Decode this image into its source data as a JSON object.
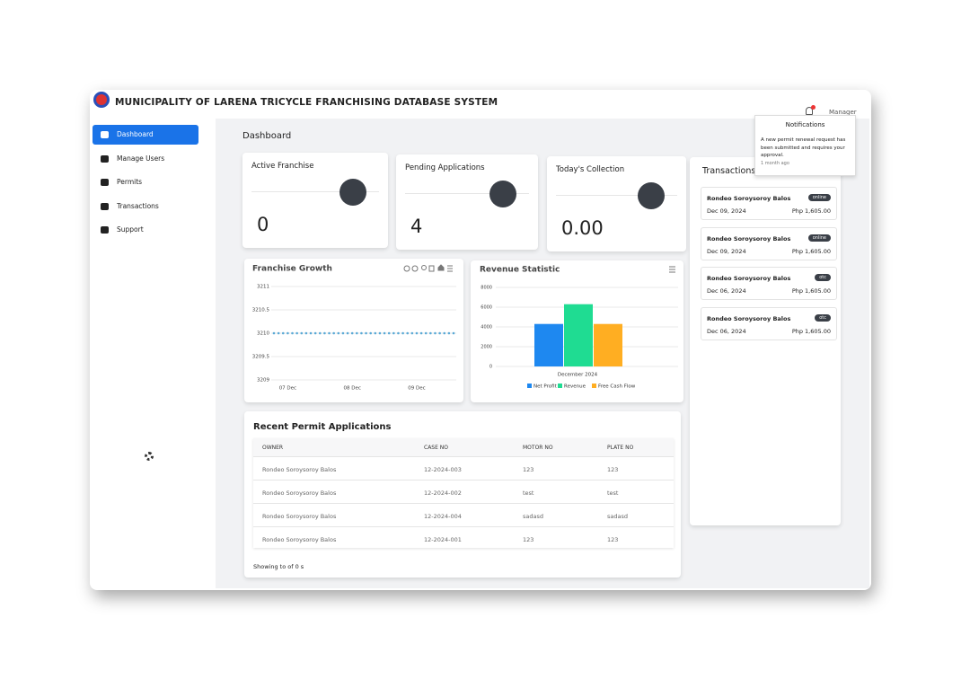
{
  "header": {
    "title": "MUNICIPALITY OF LARENA TRICYCLE FRANCHISING DATABASE SYSTEM",
    "user": "Manager"
  },
  "nav": [
    "Dashboard",
    "Manage Users",
    "Permits",
    "Transactions",
    "Support"
  ],
  "page_title": "Dashboard",
  "stats": [
    {
      "label": "Active Franchise",
      "value": "0"
    },
    {
      "label": "Pending Applications",
      "value": "4"
    },
    {
      "label": "Today's Collection",
      "value": "0.00"
    }
  ],
  "chart_data": [
    {
      "type": "line",
      "title": "Franchise Growth",
      "color": "#5aa9d6",
      "categories": [
        null,
        null,
        null,
        "07 Dec",
        null,
        null,
        null,
        null,
        null,
        null,
        null,
        null,
        null,
        null,
        null,
        null,
        null,
        "08 Dec",
        null,
        null,
        null,
        null,
        null,
        null,
        null,
        null,
        null,
        null,
        null,
        null,
        null,
        "09 Dec",
        null,
        null,
        null,
        null,
        null,
        null,
        null,
        null
      ],
      "values": [
        3210,
        3210,
        3210,
        3210,
        3210,
        3210,
        3210,
        3210,
        3210,
        3210,
        3210,
        3210,
        3210,
        3210,
        3210,
        3210,
        3210,
        3210,
        3210,
        3210,
        3210,
        3210,
        3210,
        3210,
        3210,
        3210,
        3210,
        3210,
        3210,
        3210,
        3210,
        3210,
        3210,
        3210,
        3210,
        3210,
        3210,
        3210,
        3210,
        3210
      ],
      "ylim": [
        3209,
        3211
      ],
      "yticks": [
        3209,
        3209.5,
        3210,
        3210.5,
        3211
      ],
      "grid": true
    },
    {
      "type": "bar",
      "title": "Revenue Statistic",
      "categories": [
        "December 2024"
      ],
      "series": [
        {
          "name": "Net Profit",
          "color": "#1e88f0",
          "values": [
            4300
          ]
        },
        {
          "name": "Revenue",
          "color": "#1fdc92",
          "values": [
            6300
          ]
        },
        {
          "name": "Free Cash Flow",
          "color": "#ffae22",
          "values": [
            4300
          ]
        }
      ],
      "ylim": [
        0,
        8000
      ],
      "yticks": [
        0,
        2000,
        4000,
        6000,
        8000
      ],
      "grid": true
    }
  ],
  "recent_permits": {
    "title": "Recent Permit Applications",
    "columns": [
      "OWNER",
      "CASE NO",
      "MOTOR NO",
      "PLATE NO"
    ],
    "rows": [
      [
        "Rondeo Soroysoroy Balos",
        "12-2024-003",
        "123",
        "123"
      ],
      [
        "Rondeo Soroysoroy Balos",
        "12-2024-002",
        "test",
        "test"
      ],
      [
        "Rondeo Soroysoroy Balos",
        "12-2024-004",
        "sadasd",
        "sadasd"
      ],
      [
        "Rondeo Soroysoroy Balos",
        "12-2024-001",
        "123",
        "123"
      ]
    ],
    "footer": "Showing to of 0 s"
  },
  "transactions": {
    "title": "Transactions",
    "items": [
      {
        "name": "Rondeo Soroysoroy Balos",
        "method": "online",
        "date": "Dec 09, 2024",
        "amount": "Php 1,605.00"
      },
      {
        "name": "Rondeo Soroysoroy Balos",
        "method": "online",
        "date": "Dec 09, 2024",
        "amount": "Php 1,605.00"
      },
      {
        "name": "Rondeo Soroysoroy Balos",
        "method": "otc",
        "date": "Dec 06, 2024",
        "amount": "Php 1,605.00"
      },
      {
        "name": "Rondeo Soroysoroy Balos",
        "method": "otc",
        "date": "Dec 06, 2024",
        "amount": "Php 1,605.00"
      }
    ]
  },
  "notifications": {
    "title": "Notifications",
    "items": [
      {
        "text": "A new permit renewal request has been submitted and requires your approval.",
        "time": "1 month ago"
      }
    ]
  }
}
